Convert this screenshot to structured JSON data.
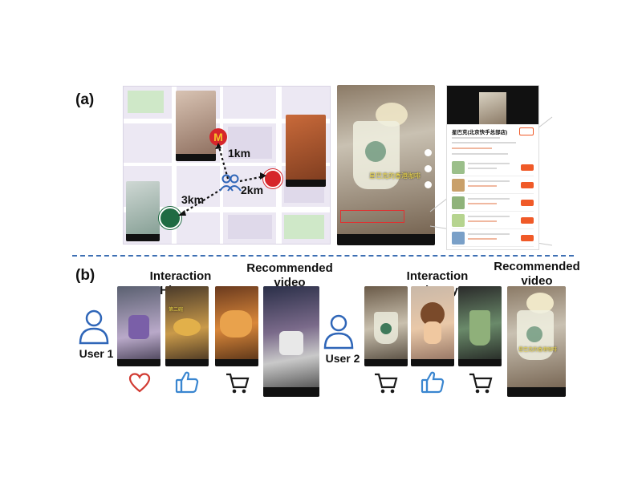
{
  "panel_a": {
    "label": "(a)",
    "distances": {
      "mcdonalds": "1km",
      "kfc": "2km",
      "starbucks": "3km"
    },
    "video_caption": "星巴克的香港咖啡",
    "store_title": "星巴克(北京快手总部店)"
  },
  "panel_b": {
    "label": "(b)",
    "interaction_history_label": "Interaction History",
    "recommended_label": "Recommended video",
    "user1": {
      "label": "User 1",
      "actions": [
        "heart-icon",
        "thumbs-up-icon",
        "cart-icon"
      ],
      "history_captions": [
        "",
        "第二碗",
        ""
      ],
      "recommended_caption": ""
    },
    "user2": {
      "label": "User 2",
      "actions": [
        "cart-icon",
        "thumbs-up-icon",
        "cart-icon"
      ],
      "history_captions": [
        "",
        "",
        ""
      ],
      "recommended_caption": "星巴克的香港咖啡"
    }
  },
  "colors": {
    "divider": "#3d6fb3",
    "user_icon": "#2f66b8",
    "heart": "#d13a32",
    "thumb": "#3a86d0",
    "cart": "#1a1a1a"
  }
}
